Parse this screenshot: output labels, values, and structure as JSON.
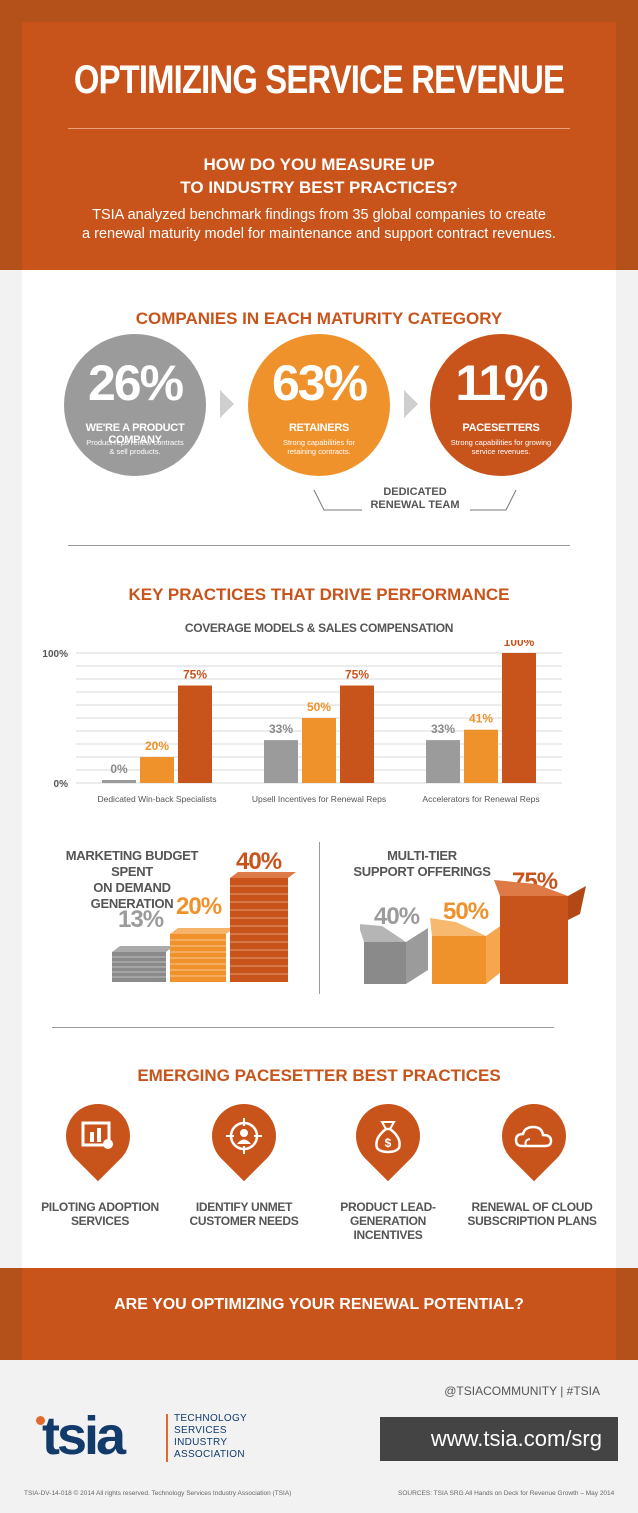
{
  "header": {
    "title": "OPTIMIZING SERVICE REVENUE",
    "question_line1": "HOW DO YOU MEASURE UP",
    "question_line2": "TO INDUSTRY BEST PRACTICES?",
    "desc_line1": "TSIA analyzed benchmark findings from 35 global companies to create",
    "desc_line2": "a renewal maturity model for maintenance and support contract revenues."
  },
  "maturity": {
    "title": "COMPANIES IN EACH MATURITY CATEGORY",
    "categories": [
      {
        "pct": "26%",
        "name": "WE'RE A PRODUCT COMPANY",
        "desc": "Product reps renew contracts & sell products.",
        "color": "#9b9b9b"
      },
      {
        "pct": "63%",
        "name": "RETAINERS",
        "desc": "Strong capabilities for retaining contracts.",
        "color": "#f0922b"
      },
      {
        "pct": "11%",
        "name": "PACESETTERS",
        "desc": "Strong capabilities for growing service revenues.",
        "color": "#c9541b"
      }
    ],
    "dedicated_line1": "DEDICATED",
    "dedicated_line2": "RENEWAL TEAM"
  },
  "practices": {
    "title": "KEY PRACTICES THAT DRIVE PERFORMANCE",
    "chart_title": "COVERAGE MODELS & SALES COMPENSATION"
  },
  "chart_data": {
    "type": "bar",
    "title": "COVERAGE MODELS & SALES COMPENSATION",
    "categories": [
      "Dedicated Win-back Specialists",
      "Upsell Incentives for Renewal Reps",
      "Accelerators for Renewal Reps"
    ],
    "series": [
      {
        "values": [
          0,
          33,
          33
        ],
        "color": "#9b9b9b"
      },
      {
        "values": [
          20,
          50,
          41
        ],
        "color": "#f0922b"
      },
      {
        "values": [
          75,
          75,
          100
        ],
        "color": "#c9541b"
      }
    ],
    "ylim": [
      0,
      100
    ],
    "ytick_labels": [
      "0%",
      "100%"
    ],
    "grid": true
  },
  "budget": {
    "title_line1": "MARKETING BUDGET SPENT",
    "title_line2": "ON DEMAND GENERATION",
    "values": [
      "13%",
      "20%",
      "40%"
    ]
  },
  "support": {
    "title_line1": "MULTI-TIER",
    "title_line2": "SUPPORT OFFERINGS",
    "values": [
      "40%",
      "50%",
      "75%"
    ]
  },
  "emerging": {
    "title": "EMERGING PACESETTER BEST PRACTICES",
    "items": [
      {
        "line1": "PILOTING ADOPTION",
        "line2": "SERVICES",
        "icon": "chart-icon"
      },
      {
        "line1": "IDENTIFY UNMET",
        "line2": "CUSTOMER NEEDS",
        "icon": "target-person-icon"
      },
      {
        "line1": "PRODUCT LEAD-GENERATION",
        "line2": "INCENTIVES",
        "icon": "money-bag-icon"
      },
      {
        "line1": "RENEWAL OF CLOUD",
        "line2": "SUBSCRIPTION PLANS",
        "icon": "cloud-icon"
      }
    ]
  },
  "cta": "ARE YOU OPTIMIZING YOUR RENEWAL POTENTIAL?",
  "footer": {
    "social": "@TSIACOMMUNITY | #TSIA",
    "url": "www.tsia.com/srg",
    "logo": "tsia",
    "org_line1": "TECHNOLOGY",
    "org_line2": "SERVICES",
    "org_line3": "INDUSTRY",
    "org_line4": "ASSOCIATION",
    "copyright": "TSIA-DV-14-018    © 2014 All rights reserved. Technology Services Industry Association (TSIA)",
    "sources": "SOURCES:  TSIA SRG All Hands on Deck for Revenue Growth – May 2014"
  }
}
